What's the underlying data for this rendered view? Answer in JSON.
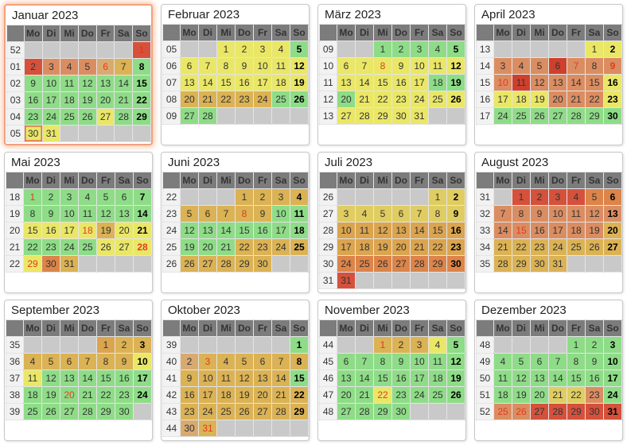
{
  "weekday_headers": [
    "Mo",
    "Di",
    "Mi",
    "Do",
    "Fr",
    "Sa",
    "So"
  ],
  "palette": {
    "e": "#c9c9c9",
    "g": "#8edc87",
    "y": "#eae767",
    "k": "#e0cd62",
    "a": "#dbb254",
    "ao": "#dba44f",
    "t": "#d9aa70",
    "o": "#dc8449",
    "s": "#db8d62",
    "r": "#d5513c",
    "dr": "#ce402c",
    "holidayText": "#e23b1e",
    "headerBg": "#7c7c7c",
    "weeknumBg": "#f2f2f2",
    "weeknumText": "#9b9b9b",
    "panelBorder": "#c8c8c8",
    "highlightBorder": "#f2a17c",
    "todayBorder": "#df6a4d",
    "emptyCell": "#c9c9c9"
  },
  "months": [
    {
      "name": "Januar 2023",
      "highlighted": true,
      "weeks": [
        {
          "wn": "52",
          "days": [
            null,
            null,
            null,
            null,
            null,
            null,
            "1:r:h"
          ]
        },
        {
          "wn": "01",
          "days": [
            "2:r",
            "3:s",
            "4:s",
            "5:s",
            "6:t:h",
            "7:a",
            "8:g"
          ]
        },
        {
          "wn": "02",
          "days": [
            "9:g",
            "10:g",
            "11:g",
            "12:g",
            "13:g",
            "14:g",
            "15:g"
          ]
        },
        {
          "wn": "03",
          "days": [
            "16:g",
            "17:g",
            "18:g",
            "19:g",
            "20:g",
            "21:g",
            "22:g"
          ]
        },
        {
          "wn": "04",
          "days": [
            "23:g",
            "24:g",
            "25:g",
            "26:g",
            "27:y",
            "28:g",
            "29:g"
          ]
        },
        {
          "wn": "05",
          "days": [
            "30:y:t",
            "31:y",
            null,
            null,
            null,
            null,
            null
          ]
        }
      ]
    },
    {
      "name": "Februar 2023",
      "highlighted": false,
      "weeks": [
        {
          "wn": "05",
          "days": [
            null,
            null,
            "1:y",
            "2:y",
            "3:y",
            "4:y",
            "5:g"
          ]
        },
        {
          "wn": "06",
          "days": [
            "6:y",
            "7:y",
            "8:y",
            "9:y",
            "10:y",
            "11:y",
            "12:y"
          ]
        },
        {
          "wn": "07",
          "days": [
            "13:y",
            "14:y",
            "15:y",
            "16:y",
            "17:y",
            "18:y",
            "19:y"
          ]
        },
        {
          "wn": "08",
          "days": [
            "20:a",
            "21:a",
            "22:a",
            "23:a",
            "24:a",
            "25:g",
            "26:g"
          ]
        },
        {
          "wn": "09",
          "days": [
            "27:g",
            "28:g",
            null,
            null,
            null,
            null,
            null
          ]
        }
      ]
    },
    {
      "name": "März 2023",
      "highlighted": false,
      "weeks": [
        {
          "wn": "09",
          "days": [
            null,
            null,
            "1:g",
            "2:g",
            "3:g",
            "4:g",
            "5:g"
          ]
        },
        {
          "wn": "10",
          "days": [
            "6:y",
            "7:y",
            "8:y:h",
            "9:y",
            "10:y",
            "11:y",
            "12:y"
          ]
        },
        {
          "wn": "11",
          "days": [
            "13:y",
            "14:y",
            "15:y",
            "16:y",
            "17:y",
            "18:g",
            "19:g"
          ]
        },
        {
          "wn": "12",
          "days": [
            "20:g",
            "21:y",
            "22:y",
            "23:y",
            "24:y",
            "25:y",
            "26:y"
          ]
        },
        {
          "wn": "13",
          "days": [
            "27:y",
            "28:y",
            "29:y",
            "30:y",
            "31:y",
            null,
            null
          ]
        }
      ]
    },
    {
      "name": "April 2023",
      "highlighted": false,
      "weeks": [
        {
          "wn": "13",
          "days": [
            null,
            null,
            null,
            null,
            null,
            "1:y",
            "2:y"
          ]
        },
        {
          "wn": "14",
          "days": [
            "3:s",
            "4:s",
            "5:s",
            "6:dr",
            "7:s:h",
            "8:s",
            "9:s:h"
          ]
        },
        {
          "wn": "15",
          "days": [
            "10:s:h",
            "11:dr",
            "12:s",
            "13:s",
            "14:s",
            "15:s",
            "16:y"
          ]
        },
        {
          "wn": "16",
          "days": [
            "17:y",
            "18:y",
            "19:y",
            "20:s",
            "21:s",
            "22:s",
            "23:y"
          ]
        },
        {
          "wn": "17",
          "days": [
            "24:g",
            "25:g",
            "26:g",
            "27:g",
            "28:g",
            "29:g",
            "30:g"
          ]
        }
      ]
    },
    {
      "name": "Mai 2023",
      "highlighted": false,
      "weeks": [
        {
          "wn": "18",
          "days": [
            "1:g:h",
            "2:g",
            "3:g",
            "4:g",
            "5:g",
            "6:g",
            "7:g"
          ]
        },
        {
          "wn": "19",
          "days": [
            "8:g",
            "9:g",
            "10:g",
            "11:g",
            "12:g",
            "13:g",
            "14:g"
          ]
        },
        {
          "wn": "20",
          "days": [
            "15:y",
            "16:y",
            "17:y",
            "18:y:h",
            "19:a",
            "20:y",
            "21:y"
          ]
        },
        {
          "wn": "21",
          "days": [
            "22:g",
            "23:g",
            "24:g",
            "25:g",
            "26:y",
            "27:y",
            "28:y:h"
          ]
        },
        {
          "wn": "22",
          "days": [
            "29:y:h",
            "30:o",
            "31:a",
            null,
            null,
            null,
            null
          ]
        }
      ]
    },
    {
      "name": "Juni 2023",
      "highlighted": false,
      "weeks": [
        {
          "wn": "22",
          "days": [
            null,
            null,
            null,
            "1:a",
            "2:a",
            "3:a",
            "4:a"
          ]
        },
        {
          "wn": "23",
          "days": [
            "5:a",
            "6:a",
            "7:a",
            "8:a:h",
            "9:a",
            "10:g",
            "11:g"
          ]
        },
        {
          "wn": "24",
          "days": [
            "12:g",
            "13:g",
            "14:g",
            "15:g",
            "16:g",
            "17:g",
            "18:g"
          ]
        },
        {
          "wn": "25",
          "days": [
            "19:g",
            "20:g",
            "21:g",
            "22:a",
            "23:a",
            "24:a",
            "25:a"
          ]
        },
        {
          "wn": "26",
          "days": [
            "26:a",
            "27:a",
            "28:a",
            "29:a",
            "30:a",
            null,
            null
          ]
        }
      ]
    },
    {
      "name": "Juli 2023",
      "highlighted": false,
      "weeks": [
        {
          "wn": "26",
          "days": [
            null,
            null,
            null,
            null,
            null,
            "1:k",
            "2:k"
          ]
        },
        {
          "wn": "27",
          "days": [
            "3:k",
            "4:k",
            "5:k",
            "6:k",
            "7:k",
            "8:k",
            "9:k"
          ]
        },
        {
          "wn": "28",
          "days": [
            "10:ao",
            "11:ao",
            "12:ao",
            "13:ao",
            "14:ao",
            "15:ao",
            "16:ao"
          ]
        },
        {
          "wn": "29",
          "days": [
            "17:ao",
            "18:ao",
            "19:ao",
            "20:ao",
            "21:ao",
            "22:ao",
            "23:ao"
          ]
        },
        {
          "wn": "30",
          "days": [
            "24:o",
            "25:o",
            "26:o",
            "27:o",
            "28:o",
            "29:o",
            "30:o"
          ]
        },
        {
          "wn": "31",
          "days": [
            "31:r",
            null,
            null,
            null,
            null,
            null,
            null
          ]
        }
      ]
    },
    {
      "name": "August 2023",
      "highlighted": false,
      "weeks": [
        {
          "wn": "31",
          "days": [
            null,
            "1:r",
            "2:r",
            "3:r",
            "4:r",
            "5:o",
            "6:o"
          ]
        },
        {
          "wn": "32",
          "days": [
            "7:s",
            "8:s",
            "9:s",
            "10:s",
            "11:s",
            "12:s",
            "13:s"
          ]
        },
        {
          "wn": "33",
          "days": [
            "14:s",
            "15:s:h",
            "16:s",
            "17:s",
            "18:s",
            "19:s",
            "20:a"
          ]
        },
        {
          "wn": "34",
          "days": [
            "21:a",
            "22:a",
            "23:a",
            "24:a",
            "25:a",
            "26:a",
            "27:a"
          ]
        },
        {
          "wn": "35",
          "days": [
            "28:a",
            "29:a",
            "30:a",
            "31:a",
            null,
            null,
            null
          ]
        }
      ]
    },
    {
      "name": "September 2023",
      "highlighted": false,
      "weeks": [
        {
          "wn": "35",
          "days": [
            null,
            null,
            null,
            null,
            "1:ao",
            "2:a",
            "3:a"
          ]
        },
        {
          "wn": "36",
          "days": [
            "4:a",
            "5:a",
            "6:a",
            "7:a",
            "8:a",
            "9:a",
            "10:y"
          ]
        },
        {
          "wn": "37",
          "days": [
            "11:y",
            "12:g",
            "13:g",
            "14:g",
            "15:g",
            "16:g",
            "17:g"
          ]
        },
        {
          "wn": "38",
          "days": [
            "18:g",
            "19:g",
            "20:g:h",
            "21:g",
            "22:g",
            "23:g",
            "24:g"
          ]
        },
        {
          "wn": "39",
          "days": [
            "25:g",
            "26:g",
            "27:g",
            "28:g",
            "29:g",
            "30:g",
            null
          ]
        }
      ]
    },
    {
      "name": "Oktober 2023",
      "highlighted": false,
      "weeks": [
        {
          "wn": "39",
          "days": [
            null,
            null,
            null,
            null,
            null,
            null,
            "1:g"
          ]
        },
        {
          "wn": "40",
          "days": [
            "2:t",
            "3:a:h",
            "4:a",
            "5:a",
            "6:a",
            "7:a",
            "8:a"
          ]
        },
        {
          "wn": "41",
          "days": [
            "9:a",
            "10:a",
            "11:a",
            "12:a",
            "13:a",
            "14:a",
            "15:g"
          ]
        },
        {
          "wn": "42",
          "days": [
            "16:a",
            "17:a",
            "18:a",
            "19:a",
            "20:a",
            "21:a",
            "22:a"
          ]
        },
        {
          "wn": "43",
          "days": [
            "23:a",
            "24:a",
            "25:a",
            "26:a",
            "27:a",
            "28:a",
            "29:a"
          ]
        },
        {
          "wn": "44",
          "days": [
            "30:t",
            "31:a:h",
            null,
            null,
            null,
            null,
            null
          ]
        }
      ]
    },
    {
      "name": "November 2023",
      "highlighted": false,
      "weeks": [
        {
          "wn": "44",
          "days": [
            null,
            null,
            "1:a:h",
            "2:a",
            "3:a",
            "4:y",
            "5:g"
          ]
        },
        {
          "wn": "45",
          "days": [
            "6:g",
            "7:g",
            "8:g",
            "9:g",
            "10:g",
            "11:g",
            "12:g"
          ]
        },
        {
          "wn": "46",
          "days": [
            "13:g",
            "14:g",
            "15:g",
            "16:g",
            "17:g",
            "18:g",
            "19:g"
          ]
        },
        {
          "wn": "47",
          "days": [
            "20:g",
            "21:g",
            "22:y:h",
            "23:g",
            "24:g",
            "25:g",
            "26:g"
          ]
        },
        {
          "wn": "48",
          "days": [
            "27:g",
            "28:g",
            "29:g",
            "30:g",
            null,
            null,
            null
          ]
        }
      ]
    },
    {
      "name": "Dezember 2023",
      "highlighted": false,
      "weeks": [
        {
          "wn": "48",
          "days": [
            null,
            null,
            null,
            null,
            "1:g",
            "2:g",
            "3:g"
          ]
        },
        {
          "wn": "49",
          "days": [
            "4:g",
            "5:g",
            "6:g",
            "7:g",
            "8:g",
            "9:g",
            "10:g"
          ]
        },
        {
          "wn": "50",
          "days": [
            "11:g",
            "12:g",
            "13:g",
            "14:g",
            "15:g",
            "16:g",
            "17:g"
          ]
        },
        {
          "wn": "51",
          "days": [
            "18:g",
            "19:g",
            "20:g",
            "21:k",
            "22:k",
            "23:s",
            "24:g"
          ]
        },
        {
          "wn": "52",
          "days": [
            "25:s:h",
            "26:s:h",
            "27:r",
            "28:r",
            "29:r",
            "30:r",
            "31:r"
          ]
        }
      ]
    }
  ]
}
